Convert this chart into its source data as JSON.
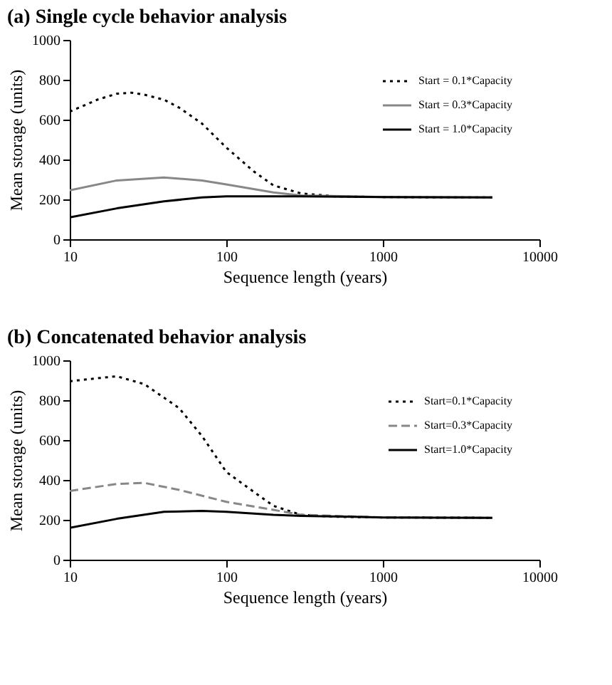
{
  "chart_data": [
    {
      "type": "line",
      "title": "(a)  Single cycle behavior analysis",
      "xlabel": "Sequence length (years)",
      "ylabel": "Mean storage (units)",
      "log": "x",
      "xlim": [
        10,
        10000
      ],
      "xticks": [
        10,
        100,
        1000,
        10000
      ],
      "ylim": [
        0,
        1000
      ],
      "yticks": [
        0,
        200,
        400,
        600,
        800,
        1000
      ],
      "grid": false,
      "legend": "top right",
      "marker": "none",
      "series": [
        {
          "name": "Start = 0.1*Capacity",
          "color": "#000000",
          "line_style": "dotted",
          "x": [
            10,
            15,
            20,
            25,
            30,
            40,
            50,
            70,
            100,
            150,
            200,
            300,
            500,
            1000,
            2000,
            5000
          ],
          "values": [
            640,
            700,
            730,
            735,
            725,
            700,
            660,
            580,
            460,
            340,
            270,
            230,
            215,
            212,
            210,
            210
          ]
        },
        {
          "name": "Start = 0.3*Capacity",
          "color": "#888888",
          "line_style": "solid",
          "x": [
            10,
            20,
            40,
            70,
            100,
            200,
            300,
            1000,
            5000
          ],
          "values": [
            245,
            295,
            310,
            295,
            275,
            235,
            220,
            212,
            210
          ]
        },
        {
          "name": "Start = 1.0*Capacity",
          "color": "#000000",
          "line_style": "solid",
          "x": [
            10,
            20,
            40,
            70,
            100,
            300,
            1000,
            5000
          ],
          "values": [
            110,
            155,
            190,
            210,
            215,
            215,
            212,
            210
          ]
        }
      ]
    },
    {
      "type": "line",
      "title": "(b) Concatenated behavior analysis",
      "xlabel": "Sequence length (years)",
      "ylabel": "Mean storage (units)",
      "log": "x",
      "xlim": [
        10,
        10000
      ],
      "xticks": [
        10,
        100,
        1000,
        10000
      ],
      "ylim": [
        0,
        1000
      ],
      "yticks": [
        0,
        200,
        400,
        600,
        800,
        1000
      ],
      "grid": false,
      "legend": "top right",
      "marker": "none",
      "series": [
        {
          "name": "Start=0.1*Capacity",
          "color": "#000000",
          "line_style": "dotted",
          "x": [
            10,
            15,
            20,
            30,
            50,
            70,
            100,
            150,
            200,
            300,
            500,
            1000,
            5000
          ],
          "values": [
            895,
            910,
            920,
            880,
            760,
            620,
            440,
            340,
            270,
            225,
            215,
            212,
            210
          ]
        },
        {
          "name": "Start=0.3*Capacity",
          "color": "#888888",
          "line_style": "dashed",
          "x": [
            10,
            20,
            30,
            50,
            100,
            200,
            300,
            1000,
            5000
          ],
          "values": [
            345,
            380,
            385,
            350,
            290,
            250,
            225,
            212,
            210
          ]
        },
        {
          "name": "Start=1.0*Capacity",
          "color": "#000000",
          "line_style": "solid",
          "x": [
            10,
            20,
            40,
            70,
            100,
            200,
            300,
            1000,
            5000
          ],
          "values": [
            160,
            205,
            240,
            245,
            240,
            225,
            220,
            212,
            210
          ]
        }
      ]
    }
  ]
}
